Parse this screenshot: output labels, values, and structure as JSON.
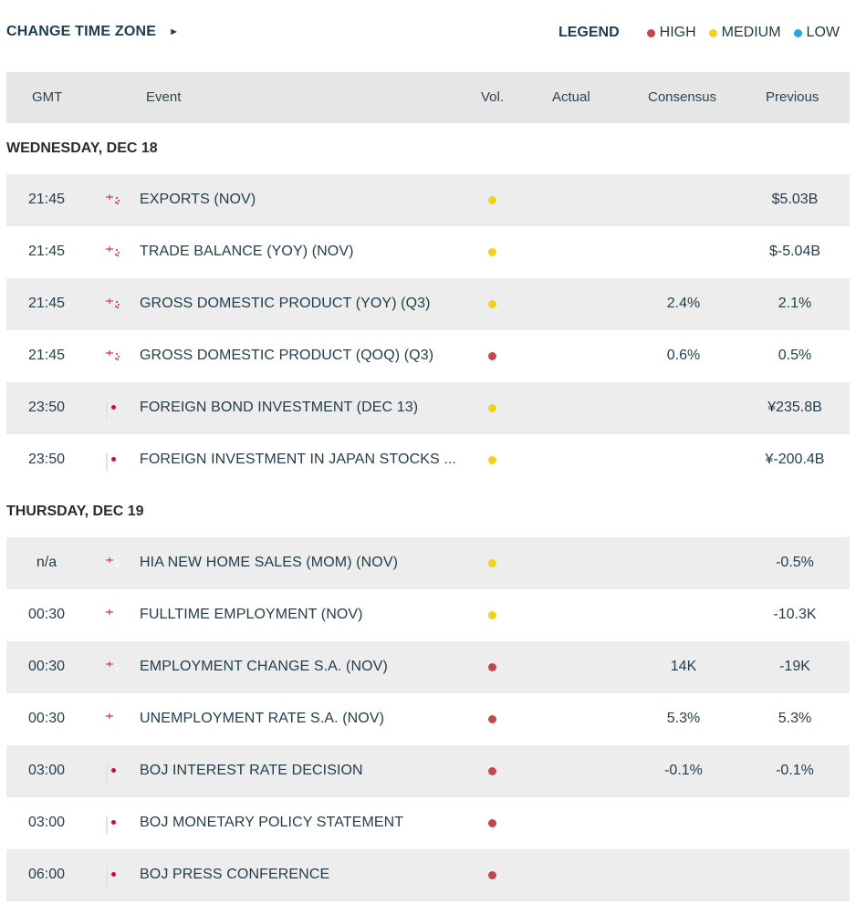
{
  "header": {
    "change_tz_label": "CHANGE TIME ZONE",
    "change_tz_arrow": "►",
    "legend": {
      "title": "LEGEND",
      "items": [
        {
          "label": "HIGH",
          "color": "#c4474f"
        },
        {
          "label": "MEDIUM",
          "color": "#f2d21e"
        },
        {
          "label": "LOW",
          "color": "#2ea3e3"
        }
      ]
    }
  },
  "columns": {
    "gmt": "GMT",
    "event": "Event",
    "vol": "Vol.",
    "actual": "Actual",
    "consensus": "Consensus",
    "previous": "Previous"
  },
  "volatility_colors": {
    "high": "#c4474f",
    "medium": "#f2d21e",
    "low": "#2ea3e3"
  },
  "days": [
    {
      "label": "WEDNESDAY, DEC 18",
      "events": [
        {
          "time": "21:45",
          "flag": "nz-flag-icon",
          "event": "EXPORTS (NOV)",
          "vol": "medium",
          "actual": "",
          "consensus": "",
          "previous": "$5.03B"
        },
        {
          "time": "21:45",
          "flag": "nz-flag-icon",
          "event": "TRADE BALANCE (YOY) (NOV)",
          "vol": "medium",
          "actual": "",
          "consensus": "",
          "previous": "$-5.04B"
        },
        {
          "time": "21:45",
          "flag": "nz-flag-icon",
          "event": "GROSS DOMESTIC PRODUCT (YOY) (Q3)",
          "vol": "medium",
          "actual": "",
          "consensus": "2.4%",
          "previous": "2.1%"
        },
        {
          "time": "21:45",
          "flag": "nz-flag-icon",
          "event": "GROSS DOMESTIC PRODUCT (QOQ) (Q3)",
          "vol": "high",
          "actual": "",
          "consensus": "0.6%",
          "previous": "0.5%"
        },
        {
          "time": "23:50",
          "flag": "jp-flag-icon",
          "event": "FOREIGN BOND INVESTMENT (DEC 13)",
          "vol": "medium",
          "actual": "",
          "consensus": "",
          "previous": "¥235.8B"
        },
        {
          "time": "23:50",
          "flag": "jp-flag-icon",
          "event": "FOREIGN INVESTMENT IN JAPAN STOCKS ...",
          "vol": "medium",
          "actual": "",
          "consensus": "",
          "previous": "¥-200.4B"
        }
      ]
    },
    {
      "label": "THURSDAY, DEC 19",
      "events": [
        {
          "time": "n/a",
          "flag": "au-flag-icon",
          "event": "HIA NEW HOME SALES (MOM) (NOV)",
          "vol": "medium",
          "actual": "",
          "consensus": "",
          "previous": "-0.5%"
        },
        {
          "time": "00:30",
          "flag": "au-flag-icon",
          "event": "FULLTIME EMPLOYMENT (NOV)",
          "vol": "medium",
          "actual": "",
          "consensus": "",
          "previous": "-10.3K"
        },
        {
          "time": "00:30",
          "flag": "au-flag-icon",
          "event": "EMPLOYMENT CHANGE S.A. (NOV)",
          "vol": "high",
          "actual": "",
          "consensus": "14K",
          "previous": "-19K"
        },
        {
          "time": "00:30",
          "flag": "au-flag-icon",
          "event": "UNEMPLOYMENT RATE S.A. (NOV)",
          "vol": "high",
          "actual": "",
          "consensus": "5.3%",
          "previous": "5.3%"
        },
        {
          "time": "03:00",
          "flag": "jp-flag-icon",
          "event": "BOJ INTEREST RATE DECISION",
          "vol": "high",
          "actual": "",
          "consensus": "-0.1%",
          "previous": "-0.1%"
        },
        {
          "time": "03:00",
          "flag": "jp-flag-icon",
          "event": "BOJ MONETARY POLICY STATEMENT",
          "vol": "high",
          "actual": "",
          "consensus": "",
          "previous": ""
        },
        {
          "time": "06:00",
          "flag": "jp-flag-icon",
          "event": "BOJ PRESS CONFERENCE",
          "vol": "high",
          "actual": "",
          "consensus": "",
          "previous": ""
        }
      ]
    }
  ]
}
